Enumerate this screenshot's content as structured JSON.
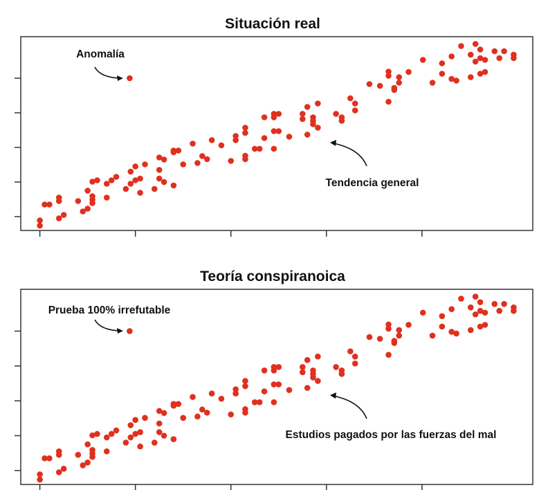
{
  "chart_data": [
    {
      "type": "scatter",
      "title": "Situación real",
      "xlabel": "",
      "ylabel": "",
      "xlim": [
        -0.2,
        5.16
      ],
      "ylim": [
        -0.4,
        5.2
      ],
      "x_ticks": [
        0,
        1,
        2,
        3,
        4
      ],
      "y_ticks": [
        0,
        1,
        2,
        3,
        4
      ],
      "tick_labels_shown": false,
      "grid": false,
      "point_color": "#e0301e",
      "outlier": {
        "x": 0.94,
        "y": 4.0,
        "label": "Anomalía"
      },
      "trend_label": "Tendencia general",
      "points": "shared"
    },
    {
      "type": "scatter",
      "title": "Teoría conspiranoica",
      "xlabel": "",
      "ylabel": "",
      "xlim": [
        -0.2,
        5.16
      ],
      "ylim": [
        -0.4,
        5.2
      ],
      "x_ticks": [
        0,
        1,
        2,
        3,
        4
      ],
      "y_ticks": [
        0,
        1,
        2,
        3,
        4
      ],
      "tick_labels_shown": false,
      "grid": false,
      "point_color": "#e0301e",
      "outlier": {
        "x": 0.94,
        "y": 4.0,
        "label": "Prueba 100% irrefutable"
      },
      "trend_label": "Estudios pagados por las fuerzas del mal",
      "points": "shared"
    }
  ],
  "shared_points": [
    [
      0.0,
      -0.11
    ],
    [
      0.0,
      -0.26
    ],
    [
      0.05,
      0.35
    ],
    [
      0.1,
      0.35
    ],
    [
      0.2,
      0.55
    ],
    [
      0.2,
      0.45
    ],
    [
      0.2,
      -0.05
    ],
    [
      0.25,
      0.05
    ],
    [
      0.4,
      0.45
    ],
    [
      0.45,
      0.15
    ],
    [
      0.5,
      0.23
    ],
    [
      0.5,
      0.75
    ],
    [
      0.55,
      0.59
    ],
    [
      0.55,
      0.49
    ],
    [
      0.55,
      0.39
    ],
    [
      0.55,
      1.01
    ],
    [
      0.6,
      1.05
    ],
    [
      0.7,
      0.95
    ],
    [
      0.7,
      0.55
    ],
    [
      0.75,
      1.05
    ],
    [
      0.8,
      1.15
    ],
    [
      0.9,
      0.8
    ],
    [
      0.95,
      0.95
    ],
    [
      0.95,
      1.3
    ],
    [
      1.0,
      1.45
    ],
    [
      1.0,
      1.05
    ],
    [
      1.05,
      1.1
    ],
    [
      1.05,
      0.69
    ],
    [
      1.1,
      1.51
    ],
    [
      1.2,
      0.8
    ],
    [
      1.25,
      1.71
    ],
    [
      1.3,
      1.65
    ],
    [
      1.25,
      1.35
    ],
    [
      1.25,
      1.1
    ],
    [
      1.3,
      1.0
    ],
    [
      1.4,
      0.9
    ],
    [
      1.4,
      1.91
    ],
    [
      1.45,
      1.91
    ],
    [
      1.4,
      1.86
    ],
    [
      1.5,
      1.51
    ],
    [
      1.6,
      2.11
    ],
    [
      1.65,
      1.55
    ],
    [
      1.7,
      1.75
    ],
    [
      1.75,
      1.66
    ],
    [
      1.8,
      2.21
    ],
    [
      1.9,
      2.06
    ],
    [
      2.0,
      1.61
    ],
    [
      2.05,
      2.33
    ],
    [
      2.05,
      2.21
    ],
    [
      2.15,
      2.57
    ],
    [
      2.15,
      2.42
    ],
    [
      2.15,
      1.76
    ],
    [
      2.15,
      1.66
    ],
    [
      2.25,
      1.96
    ],
    [
      2.3,
      1.96
    ],
    [
      2.35,
      2.87
    ],
    [
      2.35,
      2.27
    ],
    [
      2.45,
      2.97
    ],
    [
      2.45,
      2.87
    ],
    [
      2.5,
      2.97
    ],
    [
      2.45,
      2.47
    ],
    [
      2.5,
      2.47
    ],
    [
      2.45,
      1.96
    ],
    [
      2.61,
      2.31
    ],
    [
      2.75,
      2.97
    ],
    [
      2.75,
      2.82
    ],
    [
      2.8,
      3.17
    ],
    [
      2.91,
      3.27
    ],
    [
      2.86,
      2.87
    ],
    [
      2.86,
      2.77
    ],
    [
      2.86,
      2.67
    ],
    [
      2.91,
      2.57
    ],
    [
      2.8,
      2.37
    ],
    [
      3.1,
      2.97
    ],
    [
      3.16,
      2.87
    ],
    [
      3.16,
      2.77
    ],
    [
      3.25,
      3.42
    ],
    [
      3.3,
      3.27
    ],
    [
      3.3,
      3.07
    ],
    [
      3.45,
      3.83
    ],
    [
      3.56,
      3.78
    ],
    [
      3.65,
      4.19
    ],
    [
      3.65,
      4.07
    ],
    [
      3.76,
      4.03
    ],
    [
      3.76,
      3.87
    ],
    [
      3.71,
      3.72
    ],
    [
      3.71,
      3.66
    ],
    [
      3.65,
      3.32
    ],
    [
      3.86,
      4.18
    ],
    [
      4.01,
      4.53
    ],
    [
      4.11,
      3.87
    ],
    [
      4.21,
      4.43
    ],
    [
      4.21,
      4.13
    ],
    [
      4.31,
      4.63
    ],
    [
      4.31,
      3.98
    ],
    [
      4.36,
      3.93
    ],
    [
      4.41,
      4.93
    ],
    [
      4.51,
      4.68
    ],
    [
      4.51,
      4.03
    ],
    [
      4.56,
      4.99
    ],
    [
      4.61,
      4.83
    ],
    [
      4.56,
      4.48
    ],
    [
      4.61,
      4.58
    ],
    [
      4.66,
      4.53
    ],
    [
      4.61,
      4.13
    ],
    [
      4.66,
      4.18
    ],
    [
      4.76,
      4.78
    ],
    [
      4.86,
      4.78
    ],
    [
      4.81,
      4.58
    ],
    [
      4.96,
      4.68
    ],
    [
      4.96,
      4.58
    ]
  ]
}
